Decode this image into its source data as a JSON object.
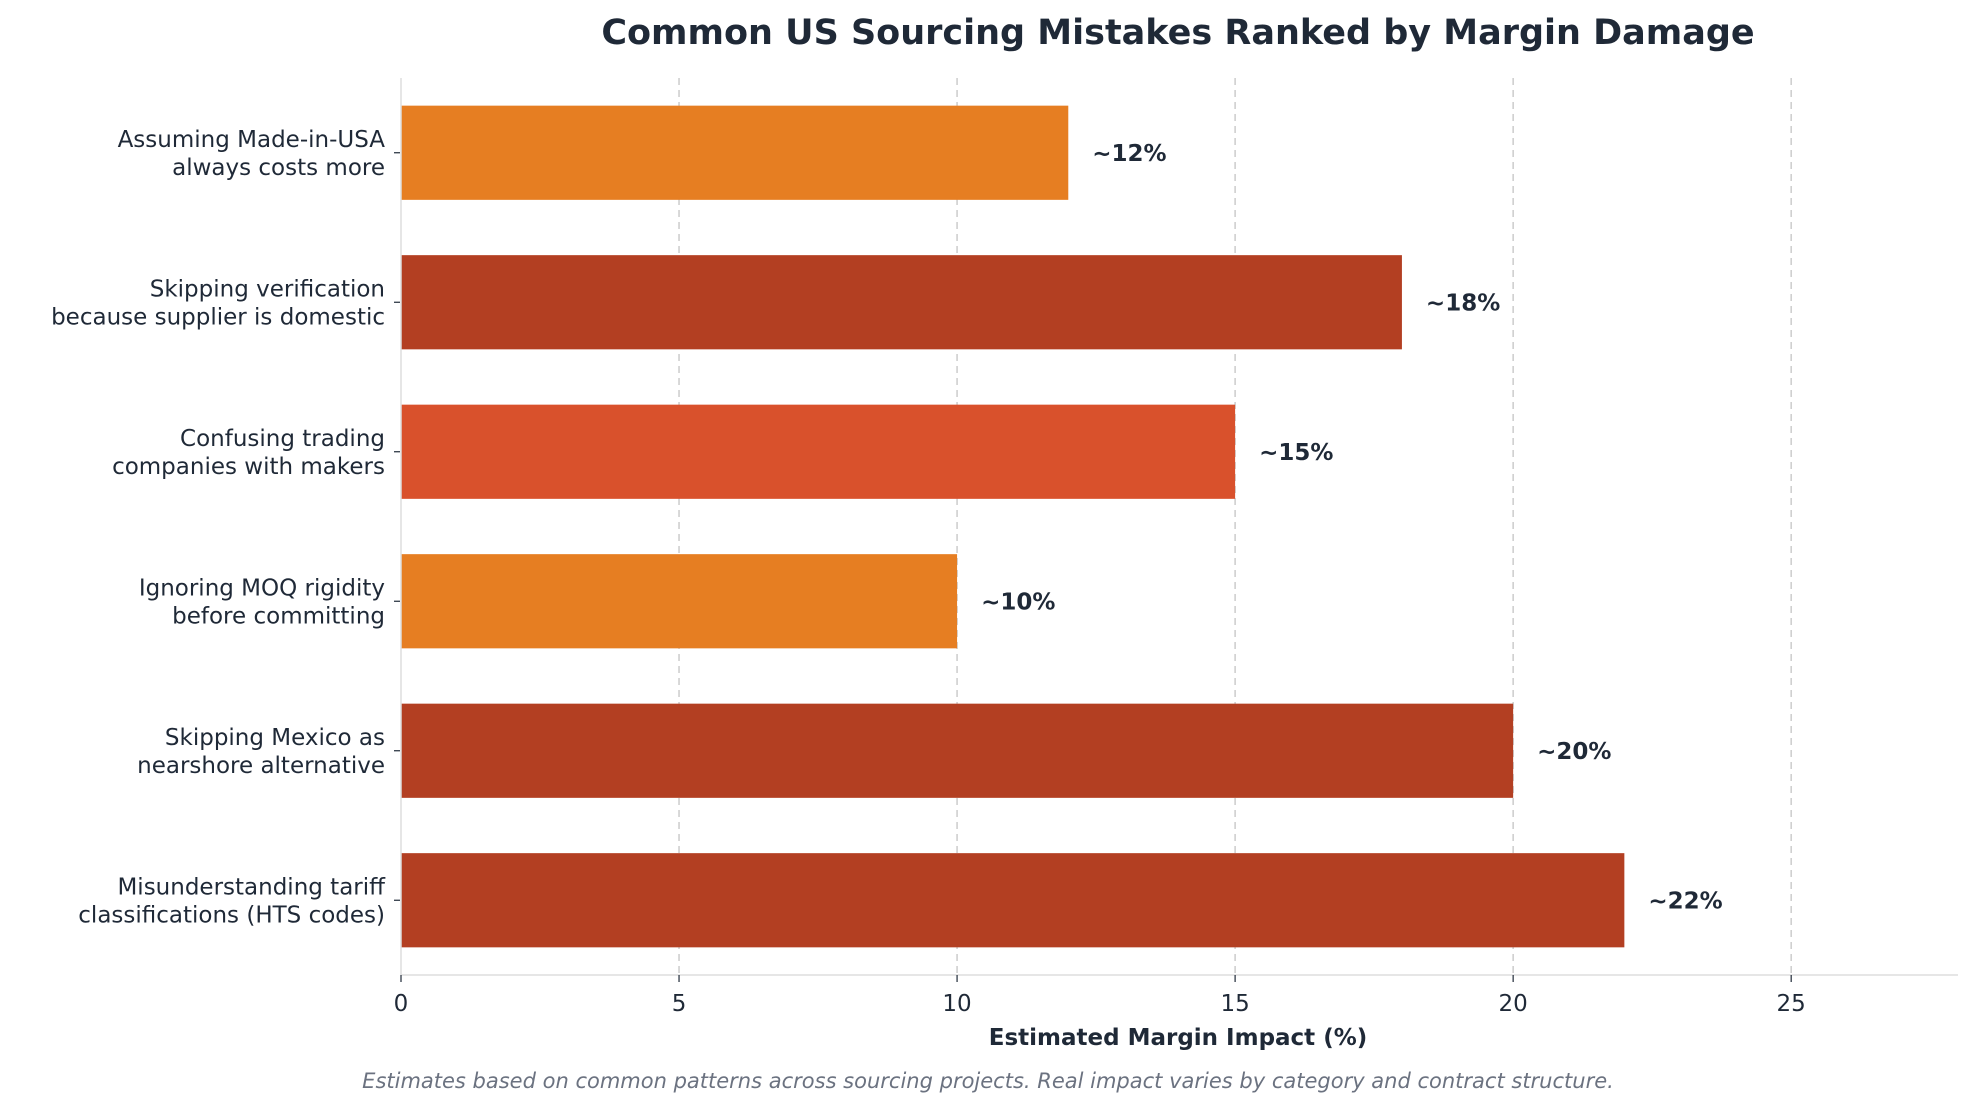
{
  "chart_data": {
    "type": "bar",
    "orientation": "horizontal",
    "title": "Common US Sourcing Mistakes Ranked by Margin Damage",
    "xlabel": "Estimated Margin Impact (%)",
    "ylabel": "",
    "caption": "Estimates based on common patterns across sourcing projects. Real impact varies by category and contract structure.",
    "xlim": [
      0,
      28
    ],
    "xticks": [
      0,
      5,
      10,
      15,
      20,
      25
    ],
    "grid": "vertical dashed",
    "legend": "none",
    "categories": [
      [
        "Assuming Made-in-USA",
        "always costs more"
      ],
      [
        "Skipping verification",
        "because supplier is domestic"
      ],
      [
        "Confusing trading",
        "companies with makers"
      ],
      [
        "Ignoring MOQ rigidity",
        "before committing"
      ],
      [
        "Skipping Mexico as",
        "nearshore alternative"
      ],
      [
        "Misunderstanding tariff",
        "classifications (HTS codes)"
      ]
    ],
    "values": [
      12,
      18,
      15,
      10,
      20,
      22
    ],
    "data_labels": [
      "~12%",
      "~18%",
      "~15%",
      "~10%",
      "~20%",
      "~22%"
    ],
    "colors": [
      "#e67e22",
      "#b33f22",
      "#d9512c",
      "#e67e22",
      "#b33f22",
      "#b33f22"
    ]
  }
}
